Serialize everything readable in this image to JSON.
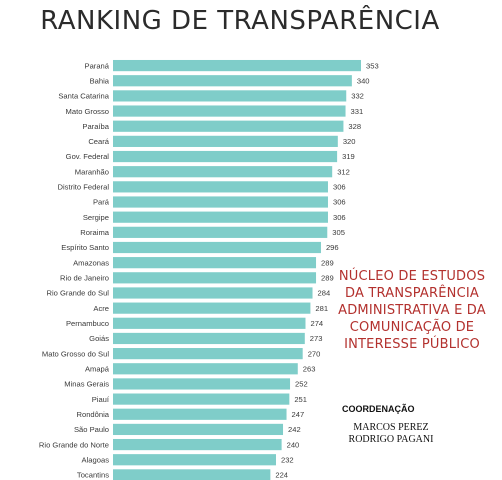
{
  "chart_data": {
    "type": "bar",
    "orientation": "horizontal",
    "title": "RANKING DE TRANSPARÊNCIA",
    "bar_color": "#7fcdc9",
    "categories": [
      "Paraná",
      "Bahia",
      "Santa Catarina",
      "Mato Grosso",
      "Paraíba",
      "Ceará",
      "Gov. Federal",
      "Maranhão",
      "Distrito Federal",
      "Pará",
      "Sergipe",
      "Roraima",
      "Espírito Santo",
      "Amazonas",
      "Rio de Janeiro",
      "Rio Grande do Sul",
      "Acre",
      "Pernambuco",
      "Goiás",
      "Mato Grosso do Sul",
      "Amapá",
      "Minas Gerais",
      "Piauí",
      "Rondônia",
      "São Paulo",
      "Rio Grande do Norte",
      "Alagoas",
      "Tocantins"
    ],
    "values": [
      353,
      340,
      332,
      331,
      328,
      320,
      319,
      312,
      306,
      306,
      306,
      305,
      296,
      289,
      289,
      284,
      281,
      274,
      273,
      270,
      263,
      252,
      251,
      247,
      242,
      240,
      232,
      224
    ],
    "value_labels": [
      "353",
      "340",
      "332",
      "331",
      "328",
      "320",
      "319",
      "312",
      "306",
      "306",
      "306",
      "305",
      "296",
      "289",
      "289",
      "284",
      "281",
      "274",
      "273",
      "270",
      "263",
      "252",
      "251",
      "247",
      "242",
      "240",
      "232",
      "224"
    ]
  },
  "org": {
    "lines": [
      "NÚCLEO DE ESTUDOS",
      "DA TRANSPARÊNCIA",
      "ADMINISTRATIVA E DA",
      "COMUNICAÇÃO DE",
      "INTERESSE PÚBLICO"
    ],
    "color": "#b3312e"
  },
  "coordination": {
    "label": "COORDENAÇÃO",
    "names": [
      "MARCOS PEREZ",
      "RODRIGO PAGANI"
    ]
  }
}
